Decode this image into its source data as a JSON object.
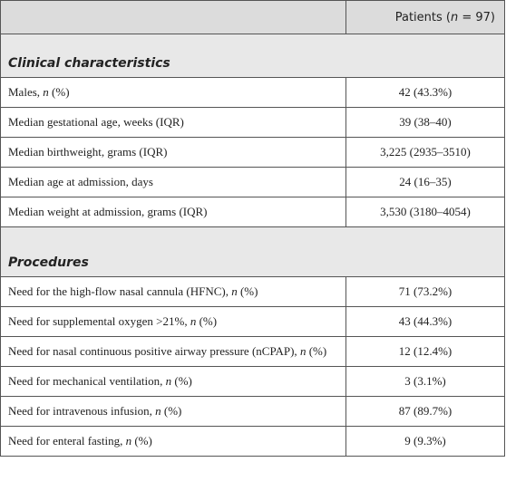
{
  "table": {
    "header": [
      {
        "t": "Patients ("
      },
      {
        "t": "n",
        "i": true
      },
      {
        "t": " = 97)"
      }
    ],
    "sections": [
      {
        "title": "Clinical characteristics",
        "rows": [
          {
            "label": [
              {
                "t": "Males, "
              },
              {
                "t": "n",
                "i": true
              },
              {
                "t": " (%)"
              }
            ],
            "value": "42 (43.3%)"
          },
          {
            "label": [
              {
                "t": "Median gestational age, weeks (IQR)"
              }
            ],
            "value": "39 (38–40)"
          },
          {
            "label": [
              {
                "t": "Median birthweight, grams (IQR)"
              }
            ],
            "value": "3,225 (2935–3510)"
          },
          {
            "label": [
              {
                "t": "Median age at admission, days"
              }
            ],
            "value": "24 (16–35)"
          },
          {
            "label": [
              {
                "t": "Median weight at admission, grams (IQR)"
              }
            ],
            "value": "3,530 (3180–4054)"
          }
        ]
      },
      {
        "title": "Procedures",
        "rows": [
          {
            "label": [
              {
                "t": "Need for the high-flow nasal cannula (HFNC), "
              },
              {
                "t": "n",
                "i": true
              },
              {
                "t": " (%)"
              }
            ],
            "value": "71 (73.2%)"
          },
          {
            "label": [
              {
                "t": "Need for supplemental oxygen >21%, "
              },
              {
                "t": "n",
                "i": true
              },
              {
                "t": " (%)"
              }
            ],
            "value": "43 (44.3%)"
          },
          {
            "label": [
              {
                "t": "Need for nasal continuous positive airway pressure (nCPAP), "
              },
              {
                "t": "n",
                "i": true
              },
              {
                "t": " (%)"
              }
            ],
            "value": "12 (12.4%)"
          },
          {
            "label": [
              {
                "t": "Need for mechanical ventilation, "
              },
              {
                "t": "n",
                "i": true
              },
              {
                "t": " (%)"
              }
            ],
            "value": "3 (3.1%)"
          },
          {
            "label": [
              {
                "t": "Need for intravenous infusion, "
              },
              {
                "t": "n",
                "i": true
              },
              {
                "t": " (%)"
              }
            ],
            "value": "87 (89.7%)"
          },
          {
            "label": [
              {
                "t": "Need for enteral fasting, "
              },
              {
                "t": "n",
                "i": true
              },
              {
                "t": " (%)"
              }
            ],
            "value": "9 (9.3%)"
          }
        ]
      }
    ]
  }
}
